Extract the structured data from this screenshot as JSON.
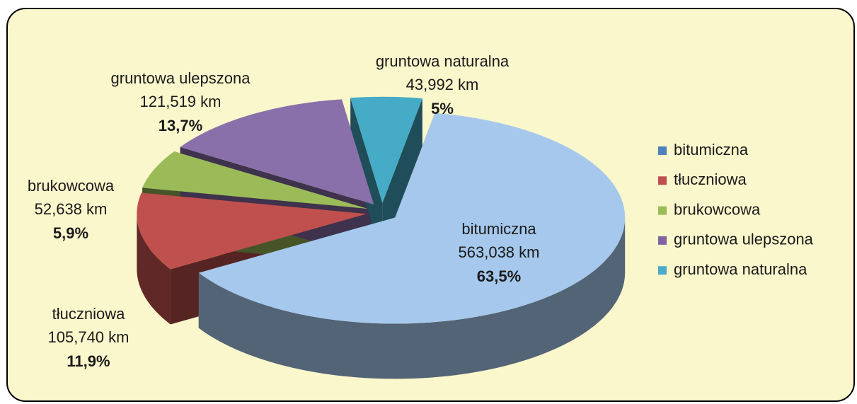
{
  "chart_data": {
    "type": "pie",
    "categories": [
      "bitumiczna",
      "tłuczniowa",
      "brukowcowa",
      "gruntowa ulepszona",
      "gruntowa naturalna"
    ],
    "values": [
      63.5,
      11.9,
      5.9,
      13.7,
      5
    ],
    "value_labels": [
      "63,5%",
      "11,9%",
      "5,9%",
      "13,7%",
      "5%"
    ],
    "length_labels": [
      "563,038 km",
      "105,740 km",
      "52,638 km",
      "121,519 km",
      "43,992 km"
    ],
    "colors": [
      "#a5c8ec",
      "#c0504d",
      "#9bbb59",
      "#8a70aa",
      "#45abc6"
    ],
    "legend_colors": [
      "#4f81bd",
      "#c0504d",
      "#9bbb59",
      "#8064a2",
      "#4bacc6"
    ],
    "legend": "right"
  }
}
